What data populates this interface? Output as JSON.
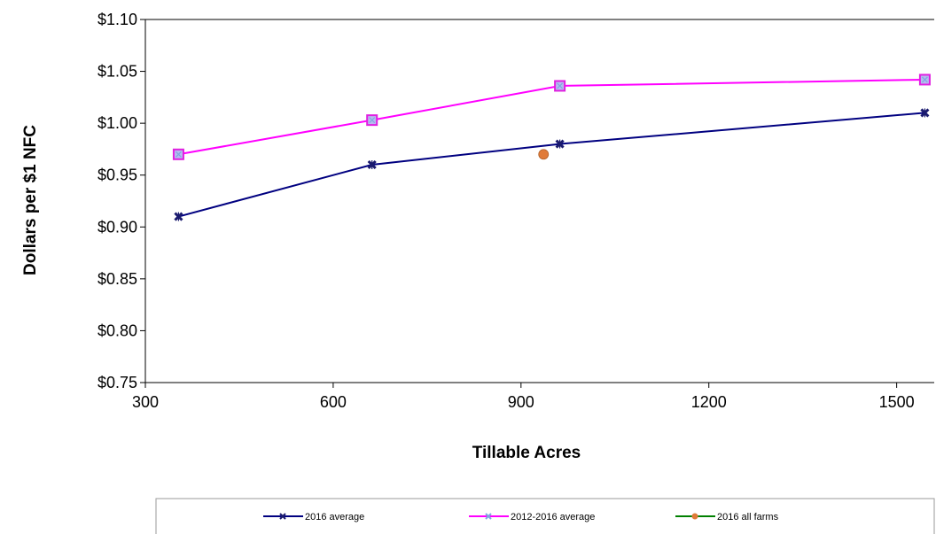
{
  "chart_data": {
    "type": "line",
    "title": "",
    "xlabel": "Tillable Acres",
    "ylabel": "Dollars per $1 NFC",
    "xlim": [
      300,
      1560
    ],
    "ylim": [
      0.75,
      1.1
    ],
    "x_ticks": [
      300,
      600,
      900,
      1200,
      1500
    ],
    "x_tick_labels": [
      "300",
      "600",
      "900",
      "1200",
      "1500"
    ],
    "y_ticks": [
      0.75,
      0.8,
      0.85,
      0.9,
      0.95,
      1.0,
      1.05,
      1.1
    ],
    "y_tick_labels": [
      "$0.75",
      "$0.80",
      "$0.85",
      "$0.90",
      "$0.95",
      "$1.00",
      "$1.05",
      "$1.10"
    ],
    "grid": false,
    "legend_position": "bottom",
    "series": [
      {
        "name": "2016 average",
        "color": "#000080",
        "marker": "x-marker",
        "points": [
          [
            353,
            0.91
          ],
          [
            662,
            0.96
          ],
          [
            962,
            0.98
          ],
          [
            1545,
            1.01
          ]
        ]
      },
      {
        "name": "2012-2016 average",
        "color": "#FF00FF",
        "marker": "square-x-marker",
        "points": [
          [
            353,
            0.97
          ],
          [
            662,
            1.003
          ],
          [
            962,
            1.036
          ],
          [
            1545,
            1.042
          ]
        ]
      },
      {
        "name": "2016 all farms",
        "color": "#008000",
        "marker_color": "#E07B39",
        "marker": "circle-marker",
        "points": [
          [
            936,
            0.97
          ]
        ]
      }
    ]
  }
}
